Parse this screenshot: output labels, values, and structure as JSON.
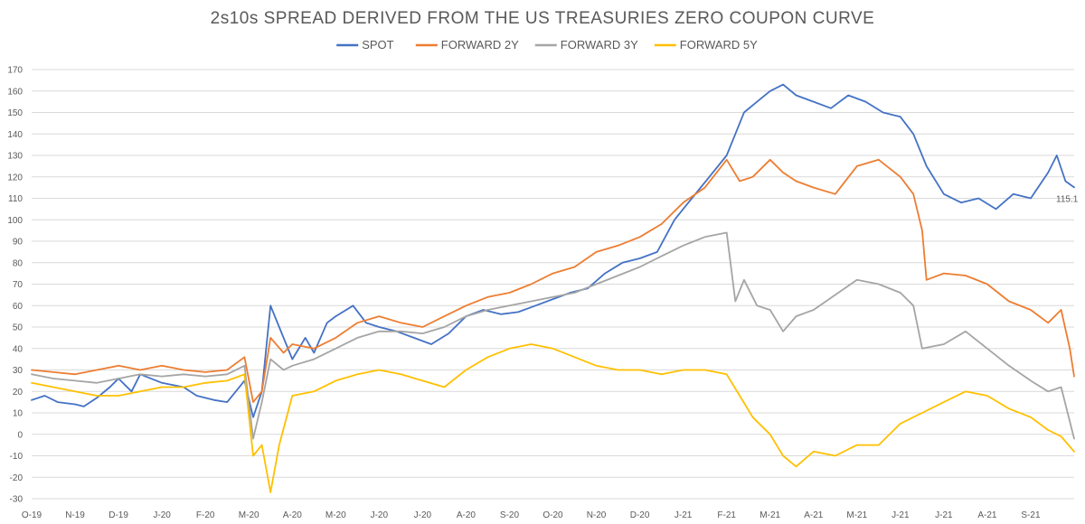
{
  "chart_data": {
    "type": "line",
    "title": "2s10s SPREAD DERIVED FROM THE US TREASURIES ZERO COUPON CURVE",
    "xlabel": "",
    "ylabel": "",
    "ylim": [
      -30,
      170
    ],
    "y_tick_step": 10,
    "grid": "horizontal",
    "legend_position": "top",
    "x_tick_labels": [
      "O-19",
      "N-19",
      "D-19",
      "J-20",
      "F-20",
      "M-20",
      "A-20",
      "M-20",
      "J-20",
      "J-20",
      "A-20",
      "S-20",
      "O-20",
      "N-20",
      "D-20",
      "J-21",
      "F-21",
      "M-21",
      "A-21",
      "M-21",
      "J-21",
      "J-21",
      "A-21",
      "S-21"
    ],
    "x_months_span": 24,
    "annotation": {
      "text": "115.1",
      "series": "SPOT"
    },
    "series": [
      {
        "name": "SPOT",
        "color": "#4472C4",
        "points": [
          [
            0,
            16
          ],
          [
            0.3,
            18
          ],
          [
            0.6,
            15
          ],
          [
            1,
            14
          ],
          [
            1.2,
            13
          ],
          [
            1.5,
            17
          ],
          [
            1.8,
            22
          ],
          [
            2,
            26
          ],
          [
            2.3,
            20
          ],
          [
            2.5,
            28
          ],
          [
            3,
            24
          ],
          [
            3.5,
            22
          ],
          [
            3.8,
            18
          ],
          [
            4.2,
            16
          ],
          [
            4.5,
            15
          ],
          [
            4.9,
            25
          ],
          [
            5.1,
            8
          ],
          [
            5.3,
            20
          ],
          [
            5.5,
            60
          ],
          [
            5.7,
            50
          ],
          [
            6,
            35
          ],
          [
            6.3,
            45
          ],
          [
            6.5,
            38
          ],
          [
            6.8,
            52
          ],
          [
            7,
            55
          ],
          [
            7.4,
            60
          ],
          [
            7.7,
            52
          ],
          [
            8,
            50
          ],
          [
            8.4,
            48
          ],
          [
            8.8,
            45
          ],
          [
            9.2,
            42
          ],
          [
            9.6,
            47
          ],
          [
            10,
            55
          ],
          [
            10.4,
            58
          ],
          [
            10.8,
            56
          ],
          [
            11.2,
            57
          ],
          [
            11.6,
            60
          ],
          [
            12,
            63
          ],
          [
            12.4,
            66
          ],
          [
            12.8,
            68
          ],
          [
            13.2,
            75
          ],
          [
            13.6,
            80
          ],
          [
            14,
            82
          ],
          [
            14.4,
            85
          ],
          [
            14.8,
            100
          ],
          [
            15.2,
            110
          ],
          [
            15.6,
            120
          ],
          [
            16,
            130
          ],
          [
            16.2,
            140
          ],
          [
            16.4,
            150
          ],
          [
            16.7,
            155
          ],
          [
            17,
            160
          ],
          [
            17.3,
            163
          ],
          [
            17.6,
            158
          ],
          [
            18,
            155
          ],
          [
            18.4,
            152
          ],
          [
            18.8,
            158
          ],
          [
            19.2,
            155
          ],
          [
            19.6,
            150
          ],
          [
            20,
            148
          ],
          [
            20.3,
            140
          ],
          [
            20.6,
            125
          ],
          [
            21,
            112
          ],
          [
            21.4,
            108
          ],
          [
            21.8,
            110
          ],
          [
            22.2,
            105
          ],
          [
            22.6,
            112
          ],
          [
            23,
            110
          ],
          [
            23.4,
            122
          ],
          [
            23.6,
            130
          ],
          [
            23.8,
            118
          ],
          [
            24,
            115.1
          ]
        ]
      },
      {
        "name": "FORWARD 2Y",
        "color": "#ED7D31",
        "points": [
          [
            0,
            30
          ],
          [
            0.5,
            29
          ],
          [
            1,
            28
          ],
          [
            1.5,
            30
          ],
          [
            2,
            32
          ],
          [
            2.5,
            30
          ],
          [
            3,
            32
          ],
          [
            3.5,
            30
          ],
          [
            4,
            29
          ],
          [
            4.5,
            30
          ],
          [
            4.9,
            36
          ],
          [
            5.1,
            15
          ],
          [
            5.3,
            20
          ],
          [
            5.5,
            45
          ],
          [
            5.8,
            38
          ],
          [
            6,
            42
          ],
          [
            6.5,
            40
          ],
          [
            7,
            45
          ],
          [
            7.5,
            52
          ],
          [
            8,
            55
          ],
          [
            8.5,
            52
          ],
          [
            9,
            50
          ],
          [
            9.5,
            55
          ],
          [
            10,
            60
          ],
          [
            10.5,
            64
          ],
          [
            11,
            66
          ],
          [
            11.5,
            70
          ],
          [
            12,
            75
          ],
          [
            12.5,
            78
          ],
          [
            13,
            85
          ],
          [
            13.5,
            88
          ],
          [
            14,
            92
          ],
          [
            14.5,
            98
          ],
          [
            15,
            108
          ],
          [
            15.5,
            115
          ],
          [
            16,
            128
          ],
          [
            16.3,
            118
          ],
          [
            16.6,
            120
          ],
          [
            17,
            128
          ],
          [
            17.3,
            122
          ],
          [
            17.6,
            118
          ],
          [
            18,
            115
          ],
          [
            18.5,
            112
          ],
          [
            19,
            125
          ],
          [
            19.5,
            128
          ],
          [
            20,
            120
          ],
          [
            20.3,
            112
          ],
          [
            20.5,
            95
          ],
          [
            20.6,
            72
          ],
          [
            21,
            75
          ],
          [
            21.5,
            74
          ],
          [
            22,
            70
          ],
          [
            22.5,
            62
          ],
          [
            23,
            58
          ],
          [
            23.4,
            52
          ],
          [
            23.7,
            58
          ],
          [
            23.9,
            40
          ],
          [
            24,
            27
          ]
        ]
      },
      {
        "name": "FORWARD 3Y",
        "color": "#A5A5A5",
        "points": [
          [
            0,
            28
          ],
          [
            0.5,
            26
          ],
          [
            1,
            25
          ],
          [
            1.5,
            24
          ],
          [
            2,
            26
          ],
          [
            2.5,
            28
          ],
          [
            3,
            27
          ],
          [
            3.5,
            28
          ],
          [
            4,
            27
          ],
          [
            4.5,
            28
          ],
          [
            4.9,
            32
          ],
          [
            5.1,
            -2
          ],
          [
            5.3,
            15
          ],
          [
            5.5,
            35
          ],
          [
            5.8,
            30
          ],
          [
            6,
            32
          ],
          [
            6.5,
            35
          ],
          [
            7,
            40
          ],
          [
            7.5,
            45
          ],
          [
            8,
            48
          ],
          [
            8.5,
            48
          ],
          [
            9,
            47
          ],
          [
            9.5,
            50
          ],
          [
            10,
            55
          ],
          [
            10.5,
            58
          ],
          [
            11,
            60
          ],
          [
            11.5,
            62
          ],
          [
            12,
            64
          ],
          [
            12.5,
            66
          ],
          [
            13,
            70
          ],
          [
            13.5,
            74
          ],
          [
            14,
            78
          ],
          [
            14.5,
            83
          ],
          [
            15,
            88
          ],
          [
            15.5,
            92
          ],
          [
            16,
            94
          ],
          [
            16.2,
            62
          ],
          [
            16.4,
            72
          ],
          [
            16.7,
            60
          ],
          [
            17,
            58
          ],
          [
            17.3,
            48
          ],
          [
            17.6,
            55
          ],
          [
            18,
            58
          ],
          [
            18.5,
            65
          ],
          [
            19,
            72
          ],
          [
            19.5,
            70
          ],
          [
            20,
            66
          ],
          [
            20.3,
            60
          ],
          [
            20.5,
            40
          ],
          [
            21,
            42
          ],
          [
            21.5,
            48
          ],
          [
            22,
            40
          ],
          [
            22.5,
            32
          ],
          [
            23,
            25
          ],
          [
            23.4,
            20
          ],
          [
            23.7,
            22
          ],
          [
            24,
            -2
          ]
        ]
      },
      {
        "name": "FORWARD 5Y",
        "color": "#FFC000",
        "points": [
          [
            0,
            24
          ],
          [
            0.5,
            22
          ],
          [
            1,
            20
          ],
          [
            1.5,
            18
          ],
          [
            2,
            18
          ],
          [
            2.5,
            20
          ],
          [
            3,
            22
          ],
          [
            3.5,
            22
          ],
          [
            4,
            24
          ],
          [
            4.5,
            25
          ],
          [
            4.9,
            28
          ],
          [
            5.1,
            -10
          ],
          [
            5.3,
            -5
          ],
          [
            5.5,
            -27
          ],
          [
            5.7,
            -5
          ],
          [
            6,
            18
          ],
          [
            6.5,
            20
          ],
          [
            7,
            25
          ],
          [
            7.5,
            28
          ],
          [
            8,
            30
          ],
          [
            8.5,
            28
          ],
          [
            9,
            25
          ],
          [
            9.5,
            22
          ],
          [
            10,
            30
          ],
          [
            10.5,
            36
          ],
          [
            11,
            40
          ],
          [
            11.5,
            42
          ],
          [
            12,
            40
          ],
          [
            12.5,
            36
          ],
          [
            13,
            32
          ],
          [
            13.5,
            30
          ],
          [
            14,
            30
          ],
          [
            14.5,
            28
          ],
          [
            15,
            30
          ],
          [
            15.5,
            30
          ],
          [
            16,
            28
          ],
          [
            16.3,
            18
          ],
          [
            16.6,
            8
          ],
          [
            17,
            0
          ],
          [
            17.3,
            -10
          ],
          [
            17.6,
            -15
          ],
          [
            18,
            -8
          ],
          [
            18.5,
            -10
          ],
          [
            19,
            -5
          ],
          [
            19.5,
            -5
          ],
          [
            20,
            5
          ],
          [
            20.5,
            10
          ],
          [
            21,
            15
          ],
          [
            21.5,
            20
          ],
          [
            22,
            18
          ],
          [
            22.5,
            12
          ],
          [
            23,
            8
          ],
          [
            23.4,
            2
          ],
          [
            23.7,
            -1
          ],
          [
            24,
            -8
          ]
        ]
      }
    ]
  }
}
